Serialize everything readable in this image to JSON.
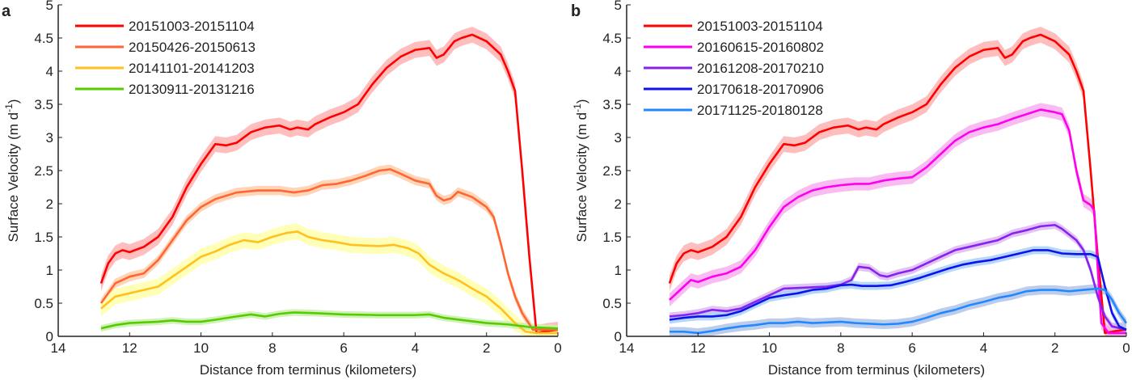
{
  "chart_data": [
    {
      "panel_label": "a",
      "type": "line",
      "title": "",
      "xlabel": "Distance from terminus (kilometers)",
      "ylabel": "Surface Velocity (m d",
      "ylabel_sup": "-1",
      "ylabel_tail": ")",
      "xlim": [
        14,
        0
      ],
      "ylim": [
        0,
        5
      ],
      "x_ticks": [
        14,
        12,
        10,
        8,
        6,
        4,
        2,
        0
      ],
      "y_ticks": [
        0,
        0.5,
        1,
        1.5,
        2,
        2.5,
        3,
        3.5,
        4,
        4.5,
        5
      ],
      "grid": false,
      "legend_position": "top-left",
      "shaded_uncertainty_bands": true,
      "series": [
        {
          "name": "20151003-20151104",
          "color": "#ff0000",
          "band_color": "#ffb3b3",
          "band_halfwidth": 0.12,
          "x": [
            12.8,
            12.6,
            12.4,
            12.2,
            12.0,
            11.6,
            11.2,
            10.8,
            10.4,
            10.0,
            9.6,
            9.3,
            9.0,
            8.6,
            8.2,
            7.8,
            7.5,
            7.3,
            7.0,
            6.8,
            6.4,
            6.0,
            5.6,
            5.2,
            4.8,
            4.4,
            4.0,
            3.6,
            3.4,
            3.2,
            2.9,
            2.7,
            2.4,
            2.0,
            1.6,
            1.4,
            1.2,
            1.0,
            0.8,
            0.6,
            0.3,
            0.0
          ],
          "y": [
            0.8,
            1.1,
            1.25,
            1.3,
            1.27,
            1.35,
            1.5,
            1.8,
            2.25,
            2.6,
            2.9,
            2.88,
            2.92,
            3.08,
            3.15,
            3.18,
            3.12,
            3.15,
            3.12,
            3.2,
            3.3,
            3.38,
            3.5,
            3.8,
            4.05,
            4.22,
            4.32,
            4.35,
            4.2,
            4.25,
            4.45,
            4.5,
            4.55,
            4.45,
            4.25,
            4.0,
            3.7,
            2.5,
            1.2,
            0.05,
            0.08,
            0.1
          ]
        },
        {
          "name": "20150426-20150613",
          "color": "#ff6633",
          "band_color": "#ffccaa",
          "band_halfwidth": 0.07,
          "x": [
            12.8,
            12.4,
            12.0,
            11.6,
            11.2,
            10.8,
            10.4,
            10.0,
            9.6,
            9.0,
            8.4,
            7.8,
            7.4,
            7.0,
            6.6,
            6.2,
            5.8,
            5.4,
            5.0,
            4.7,
            4.4,
            4.0,
            3.6,
            3.4,
            3.2,
            3.0,
            2.8,
            2.4,
            2.0,
            1.8,
            1.6,
            1.4,
            1.2,
            1.0,
            0.7,
            0.0
          ],
          "y": [
            0.5,
            0.8,
            0.9,
            0.95,
            1.15,
            1.45,
            1.75,
            1.95,
            2.07,
            2.17,
            2.2,
            2.2,
            2.17,
            2.2,
            2.28,
            2.3,
            2.35,
            2.42,
            2.5,
            2.52,
            2.45,
            2.35,
            2.3,
            2.12,
            2.05,
            2.08,
            2.18,
            2.1,
            1.95,
            1.8,
            1.4,
            0.95,
            0.6,
            0.35,
            0.1,
            0.1
          ]
        },
        {
          "name": "20141101-20141203",
          "color": "#ffc020",
          "band_color": "#ffffaa",
          "band_halfwidth": 0.12,
          "x": [
            12.8,
            12.4,
            12.0,
            11.6,
            11.2,
            10.8,
            10.4,
            10.0,
            9.6,
            9.2,
            8.8,
            8.4,
            8.0,
            7.6,
            7.3,
            7.0,
            6.6,
            6.2,
            5.8,
            5.4,
            5.0,
            4.6,
            4.2,
            3.9,
            3.6,
            3.2,
            2.8,
            2.4,
            2.0,
            1.6,
            1.2,
            0.9,
            0.6,
            0.0
          ],
          "y": [
            0.42,
            0.6,
            0.65,
            0.7,
            0.75,
            0.9,
            1.05,
            1.2,
            1.28,
            1.38,
            1.45,
            1.42,
            1.5,
            1.56,
            1.58,
            1.5,
            1.45,
            1.42,
            1.38,
            1.37,
            1.36,
            1.38,
            1.33,
            1.25,
            1.08,
            0.95,
            0.85,
            0.72,
            0.6,
            0.42,
            0.2,
            0.07,
            0.05,
            0.05
          ]
        },
        {
          "name": "20130911-20131216",
          "color": "#55cc00",
          "band_color": "#c8eeaa",
          "band_halfwidth": 0.05,
          "x": [
            12.8,
            12.4,
            12.0,
            11.2,
            10.8,
            10.4,
            10.0,
            9.6,
            9.0,
            8.6,
            8.2,
            7.8,
            7.4,
            6.8,
            6.0,
            5.0,
            4.0,
            3.6,
            3.2,
            2.6,
            2.0,
            1.4,
            0.8,
            0.0
          ],
          "y": [
            0.12,
            0.17,
            0.2,
            0.22,
            0.24,
            0.22,
            0.22,
            0.25,
            0.3,
            0.33,
            0.3,
            0.34,
            0.36,
            0.35,
            0.33,
            0.32,
            0.32,
            0.33,
            0.28,
            0.24,
            0.2,
            0.18,
            0.14,
            0.12
          ]
        }
      ]
    },
    {
      "panel_label": "b",
      "type": "line",
      "title": "",
      "xlabel": "Distance from terminus (kilometers)",
      "ylabel": "Surface Velocity (m d",
      "ylabel_sup": "-1",
      "ylabel_tail": ")",
      "xlim": [
        14,
        0
      ],
      "ylim": [
        0,
        5
      ],
      "x_ticks": [
        14,
        12,
        10,
        8,
        6,
        4,
        2,
        0
      ],
      "y_ticks": [
        0,
        0.5,
        1,
        1.5,
        2,
        2.5,
        3,
        3.5,
        4,
        4.5,
        5
      ],
      "grid": false,
      "legend_position": "top-left",
      "shaded_uncertainty_bands": true,
      "series": [
        {
          "name": "20151003-20151104",
          "color": "#ff0000",
          "band_color": "#ffb3b3",
          "band_halfwidth": 0.12,
          "x": [
            12.8,
            12.6,
            12.4,
            12.2,
            12.0,
            11.6,
            11.2,
            10.8,
            10.4,
            10.0,
            9.6,
            9.3,
            9.0,
            8.6,
            8.2,
            7.8,
            7.5,
            7.3,
            7.0,
            6.8,
            6.4,
            6.0,
            5.6,
            5.2,
            4.8,
            4.4,
            4.0,
            3.6,
            3.4,
            3.2,
            2.9,
            2.7,
            2.4,
            2.0,
            1.6,
            1.4,
            1.2,
            1.0,
            0.8,
            0.6,
            0.3,
            0.0
          ],
          "y": [
            0.8,
            1.1,
            1.25,
            1.3,
            1.27,
            1.35,
            1.5,
            1.8,
            2.25,
            2.6,
            2.9,
            2.88,
            2.92,
            3.08,
            3.15,
            3.18,
            3.12,
            3.15,
            3.12,
            3.2,
            3.3,
            3.38,
            3.5,
            3.8,
            4.05,
            4.22,
            4.32,
            4.35,
            4.2,
            4.25,
            4.45,
            4.5,
            4.55,
            4.45,
            4.25,
            4.0,
            3.7,
            2.5,
            1.2,
            0.05,
            0.08,
            0.1
          ]
        },
        {
          "name": "20160615-20160802",
          "color": "#ff00ee",
          "band_color": "#f8b0f0",
          "band_halfwidth": 0.1,
          "x": [
            12.8,
            12.4,
            12.2,
            12.0,
            11.6,
            11.2,
            10.8,
            10.4,
            10.0,
            9.6,
            9.2,
            8.8,
            8.4,
            8.0,
            7.6,
            7.2,
            6.8,
            6.4,
            6.0,
            5.6,
            5.2,
            4.8,
            4.4,
            4.0,
            3.6,
            3.2,
            2.8,
            2.4,
            2.0,
            1.8,
            1.6,
            1.4,
            1.2,
            1.0,
            0.9,
            0.8,
            0.7,
            0.5,
            0.0
          ],
          "y": [
            0.55,
            0.75,
            0.85,
            0.82,
            0.9,
            0.95,
            1.05,
            1.3,
            1.65,
            1.95,
            2.1,
            2.2,
            2.25,
            2.28,
            2.3,
            2.3,
            2.35,
            2.38,
            2.4,
            2.55,
            2.75,
            2.95,
            3.08,
            3.15,
            3.2,
            3.28,
            3.35,
            3.42,
            3.38,
            3.35,
            3.1,
            2.5,
            2.05,
            1.98,
            1.9,
            1.0,
            0.2,
            0.05,
            0.05
          ]
        },
        {
          "name": "20161208-20170210",
          "color": "#8822ee",
          "band_color": "#dcb8f4",
          "band_halfwidth": 0.06,
          "x": [
            12.8,
            12.4,
            12.0,
            11.6,
            11.2,
            10.8,
            10.4,
            10.0,
            9.6,
            9.2,
            8.8,
            8.4,
            8.0,
            7.7,
            7.5,
            7.2,
            6.9,
            6.7,
            6.4,
            6.0,
            5.6,
            5.2,
            4.8,
            4.4,
            4.0,
            3.6,
            3.2,
            2.8,
            2.4,
            2.0,
            1.8,
            1.4,
            1.2,
            1.0,
            0.8,
            0.6,
            0.4,
            0.0
          ],
          "y": [
            0.3,
            0.32,
            0.35,
            0.4,
            0.38,
            0.42,
            0.52,
            0.62,
            0.72,
            0.73,
            0.74,
            0.75,
            0.78,
            0.85,
            1.05,
            1.03,
            0.92,
            0.9,
            0.95,
            1.0,
            1.1,
            1.2,
            1.3,
            1.35,
            1.4,
            1.45,
            1.55,
            1.6,
            1.66,
            1.68,
            1.62,
            1.45,
            1.3,
            1.0,
            0.6,
            0.3,
            0.15,
            0.1
          ]
        },
        {
          "name": "20170618-20170906",
          "color": "#1111ee",
          "band_color": "#a8d0f8",
          "band_halfwidth": 0.06,
          "x": [
            12.8,
            12.4,
            12.0,
            11.6,
            11.2,
            10.8,
            10.4,
            10.0,
            9.6,
            9.2,
            8.8,
            8.4,
            8.0,
            7.7,
            7.4,
            7.0,
            6.6,
            6.2,
            5.8,
            5.4,
            5.0,
            4.6,
            4.2,
            3.8,
            3.4,
            3.0,
            2.6,
            2.2,
            1.8,
            1.4,
            1.0,
            0.8,
            0.6,
            0.4,
            0.2,
            0.0
          ],
          "y": [
            0.25,
            0.28,
            0.3,
            0.3,
            0.32,
            0.38,
            0.48,
            0.58,
            0.62,
            0.65,
            0.7,
            0.72,
            0.77,
            0.78,
            0.76,
            0.76,
            0.77,
            0.82,
            0.88,
            0.95,
            1.02,
            1.08,
            1.12,
            1.15,
            1.2,
            1.25,
            1.3,
            1.3,
            1.25,
            1.24,
            1.24,
            1.2,
            0.75,
            0.35,
            0.15,
            0.1
          ]
        },
        {
          "name": "20171125-20180128",
          "color": "#2288ff",
          "band_color": "#b0c4e8",
          "band_halfwidth": 0.07,
          "x": [
            12.8,
            12.4,
            12.0,
            11.6,
            11.2,
            10.8,
            10.4,
            10.0,
            9.6,
            9.2,
            8.8,
            8.4,
            8.0,
            7.6,
            7.2,
            6.8,
            6.4,
            6.0,
            5.6,
            5.2,
            4.8,
            4.4,
            4.0,
            3.6,
            3.2,
            2.8,
            2.4,
            2.0,
            1.6,
            1.2,
            0.8,
            0.6,
            0.4,
            0.2,
            0.0
          ],
          "y": [
            0.07,
            0.07,
            0.05,
            0.08,
            0.12,
            0.15,
            0.17,
            0.2,
            0.2,
            0.22,
            0.2,
            0.21,
            0.22,
            0.2,
            0.19,
            0.18,
            0.19,
            0.22,
            0.28,
            0.35,
            0.4,
            0.47,
            0.52,
            0.58,
            0.62,
            0.68,
            0.7,
            0.7,
            0.68,
            0.7,
            0.72,
            0.7,
            0.55,
            0.35,
            0.2
          ]
        }
      ]
    }
  ]
}
